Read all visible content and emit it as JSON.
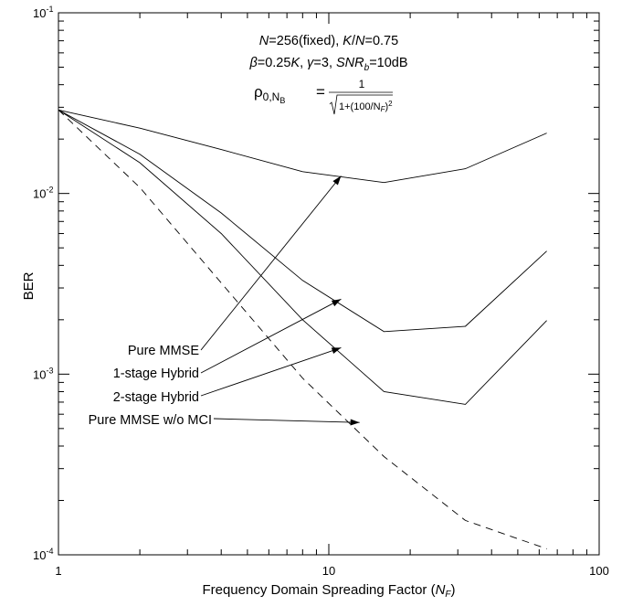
{
  "chart_data": {
    "type": "line",
    "xlabel_prefix": "Frequency Domain Spreading Factor (",
    "xlabel_var": "N",
    "xlabel_sub": "F",
    "xlabel_suffix": ")",
    "ylabel": "BER",
    "xscale": "log",
    "yscale": "log",
    "xlim": [
      1,
      100
    ],
    "ylim": [
      0.0001,
      0.1
    ],
    "x_ticks": [
      {
        "value": 1,
        "label": "1"
      },
      {
        "value": 10,
        "label": "10"
      },
      {
        "value": 100,
        "label": "100"
      }
    ],
    "y_ticks": [
      {
        "value": 0.0001,
        "base": "10",
        "exp": "-4"
      },
      {
        "value": 0.001,
        "base": "10",
        "exp": "-3"
      },
      {
        "value": 0.01,
        "base": "10",
        "exp": "-2"
      },
      {
        "value": 0.1,
        "base": "10",
        "exp": "-1"
      }
    ],
    "grid": false,
    "series": [
      {
        "name": "Pure MMSE",
        "style": "solid",
        "x": [
          1,
          2,
          4,
          8,
          16,
          32,
          64
        ],
        "y": [
          0.029,
          0.023,
          0.0175,
          0.0132,
          0.0115,
          0.0137,
          0.0216
        ]
      },
      {
        "name": "1-stage Hybrid",
        "style": "solid",
        "x": [
          1,
          2,
          4,
          8,
          16,
          32,
          64
        ],
        "y": [
          0.029,
          0.0165,
          0.0078,
          0.0033,
          0.00172,
          0.00184,
          0.0048
        ]
      },
      {
        "name": "2-stage Hybrid",
        "style": "solid",
        "x": [
          1,
          2,
          4,
          8,
          16,
          32,
          64
        ],
        "y": [
          0.029,
          0.0148,
          0.006,
          0.002,
          0.0008,
          0.00068,
          0.00198
        ]
      },
      {
        "name": "Pure MMSE w/o MCI",
        "style": "dashed",
        "x": [
          1,
          2,
          4,
          8,
          16,
          32,
          64
        ],
        "y": [
          0.029,
          0.0108,
          0.0032,
          0.00095,
          0.00035,
          0.000155,
          0.000108
        ]
      }
    ],
    "annotations": [
      {
        "label": "Pure MMSE",
        "series": "Pure MMSE",
        "arrow_to": {
          "x": 11.1,
          "y": 0.0125
        }
      },
      {
        "label": "1-stage Hybrid",
        "series": "1-stage Hybrid",
        "arrow_to": {
          "x": 11.1,
          "y": 0.0026
        }
      },
      {
        "label": "2-stage Hybrid",
        "series": "2-stage Hybrid",
        "arrow_to": {
          "x": 11.1,
          "y": 0.0014
        }
      },
      {
        "label": "Pure MMSE w/o MCI",
        "series": "Pure MMSE w/o MCI",
        "arrow_to": {
          "x": 13.0,
          "y": 0.00054
        }
      }
    ],
    "params": {
      "line1": [
        {
          "t": "N",
          "i": true
        },
        {
          "t": "=256(fixed), "
        },
        {
          "t": "K",
          "i": true
        },
        {
          "t": "/"
        },
        {
          "t": "N",
          "i": true
        },
        {
          "t": "=0.75"
        }
      ],
      "line2": [
        {
          "t": "β",
          "i": true
        },
        {
          "t": "=0.25"
        },
        {
          "t": "K",
          "i": true
        },
        {
          "t": ", "
        },
        {
          "t": "γ",
          "i": true
        },
        {
          "t": "=3, "
        },
        {
          "t": "SNR",
          "i": true
        },
        {
          "t": "b",
          "i": true,
          "sub": true
        },
        {
          "t": "=10dB"
        }
      ]
    },
    "formula": {
      "lhs_rho": "ρ",
      "lhs_sub": "0,N",
      "lhs_subsub": "B",
      "equals": "=",
      "numerator": "1",
      "den_main": "1+(100/N",
      "den_sub": "F",
      "den_close": ")",
      "den_sup": "2"
    }
  }
}
